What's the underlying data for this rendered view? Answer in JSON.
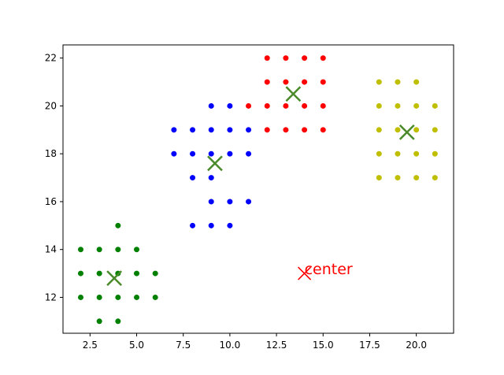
{
  "chart_data": {
    "type": "scatter",
    "title": "",
    "xlabel": "",
    "ylabel": "",
    "xlim": [
      1.05,
      22.0
    ],
    "ylim": [
      10.5,
      22.55
    ],
    "grid": false,
    "x_ticks": [
      2.5,
      5.0,
      7.5,
      10.0,
      12.5,
      15.0,
      17.5,
      20.0
    ],
    "x_tick_labels": [
      "2.5",
      "5.0",
      "7.5",
      "10.0",
      "12.5",
      "15.0",
      "17.5",
      "20.0"
    ],
    "y_ticks": [
      12,
      14,
      16,
      18,
      20,
      22
    ],
    "y_tick_labels": [
      "12",
      "14",
      "16",
      "18",
      "20",
      "22"
    ],
    "series": [
      {
        "color": "#008000",
        "points": [
          [
            2,
            14
          ],
          [
            2,
            13
          ],
          [
            2,
            12
          ],
          [
            3,
            14
          ],
          [
            3,
            13
          ],
          [
            3,
            12
          ],
          [
            3,
            11
          ],
          [
            4,
            15
          ],
          [
            4,
            14
          ],
          [
            4,
            13
          ],
          [
            4,
            12
          ],
          [
            4,
            11
          ],
          [
            5,
            14
          ],
          [
            5,
            13
          ],
          [
            5,
            12
          ],
          [
            6,
            13
          ],
          [
            6,
            12
          ]
        ]
      },
      {
        "color": "#0000ff",
        "points": [
          [
            7,
            19
          ],
          [
            7,
            18
          ],
          [
            8,
            19
          ],
          [
            8,
            18
          ],
          [
            8,
            17
          ],
          [
            8,
            15
          ],
          [
            9,
            20
          ],
          [
            9,
            19
          ],
          [
            9,
            18
          ],
          [
            9,
            17
          ],
          [
            9,
            16
          ],
          [
            9,
            15
          ],
          [
            10,
            20
          ],
          [
            10,
            19
          ],
          [
            10,
            18
          ],
          [
            10,
            16
          ],
          [
            10,
            15
          ],
          [
            11,
            19
          ],
          [
            11,
            18
          ],
          [
            11,
            16
          ]
        ]
      },
      {
        "color": "#ff0000",
        "points": [
          [
            11,
            20
          ],
          [
            12,
            22
          ],
          [
            12,
            21
          ],
          [
            12,
            20
          ],
          [
            12,
            19
          ],
          [
            13,
            22
          ],
          [
            13,
            21
          ],
          [
            13,
            20
          ],
          [
            13,
            19
          ],
          [
            14,
            22
          ],
          [
            14,
            21
          ],
          [
            14,
            20
          ],
          [
            14,
            19
          ],
          [
            15,
            22
          ],
          [
            15,
            21
          ],
          [
            15,
            20
          ],
          [
            15,
            19
          ]
        ]
      },
      {
        "color": "#bfbf00",
        "points": [
          [
            18,
            21
          ],
          [
            18,
            20
          ],
          [
            18,
            19
          ],
          [
            18,
            18
          ],
          [
            18,
            17
          ],
          [
            19,
            21
          ],
          [
            19,
            20
          ],
          [
            19,
            19
          ],
          [
            19,
            18
          ],
          [
            19,
            17
          ],
          [
            20,
            21
          ],
          [
            20,
            20
          ],
          [
            20,
            19
          ],
          [
            20,
            18
          ],
          [
            20,
            17
          ],
          [
            21,
            20
          ],
          [
            21,
            19
          ],
          [
            21,
            18
          ],
          [
            21,
            17
          ]
        ]
      }
    ],
    "centroids": {
      "color": "#4a8a2a",
      "marker": "x",
      "points": [
        [
          3.8,
          12.8
        ],
        [
          9.2,
          17.6
        ],
        [
          13.4,
          20.5
        ],
        [
          19.5,
          18.9
        ]
      ]
    },
    "annotation": {
      "marker": "x",
      "color": "#ff0000",
      "point": [
        14.0,
        13.0
      ],
      "text": "center"
    }
  }
}
